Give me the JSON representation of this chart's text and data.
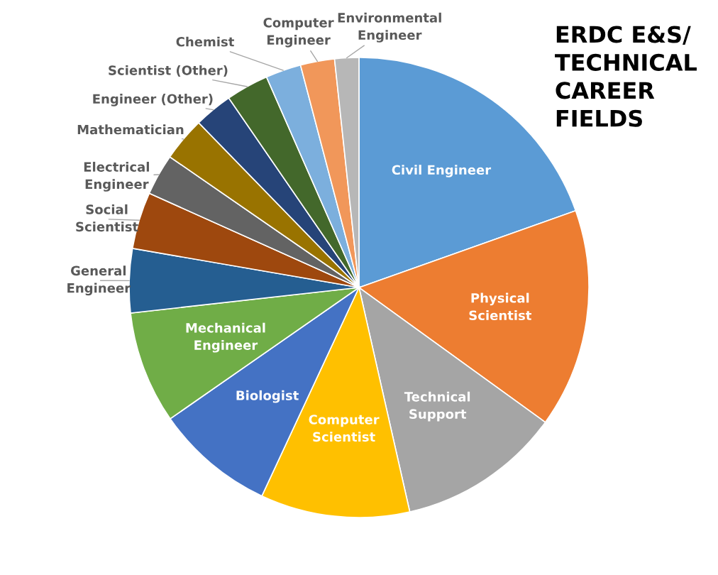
{
  "chart_data": {
    "type": "pie",
    "title": "ERDC E&S/\nTECHNICAL\nCAREER\nFIELDS",
    "categories": [
      "Civil Engineer",
      "Physical\nScientist",
      "Technical\nSupport",
      "Computer\nScientist",
      "Biologist",
      "Mechanical\nEngineer",
      "General\nEngineer",
      "Social\nScientist",
      "Electrical\nEngineer",
      "Mathematician",
      "Engineer (Other)",
      "Scientist (Other)",
      "Chemist",
      "Computer\nEngineer",
      "Environmental\nEngineer"
    ],
    "values": [
      19.6,
      15.4,
      11.5,
      10.5,
      8.4,
      7.9,
      4.5,
      4.0,
      2.9,
      3.1,
      2.7,
      3.0,
      2.5,
      2.4,
      1.7
    ],
    "colors": [
      "#5b9bd5",
      "#ed7d31",
      "#a5a5a5",
      "#ffc000",
      "#4472c4",
      "#70ad47",
      "#255e91",
      "#9e480e",
      "#636363",
      "#997300",
      "#264478",
      "#43682b",
      "#7cafdd",
      "#f1975a",
      "#b7b7b7"
    ],
    "legend": false
  }
}
